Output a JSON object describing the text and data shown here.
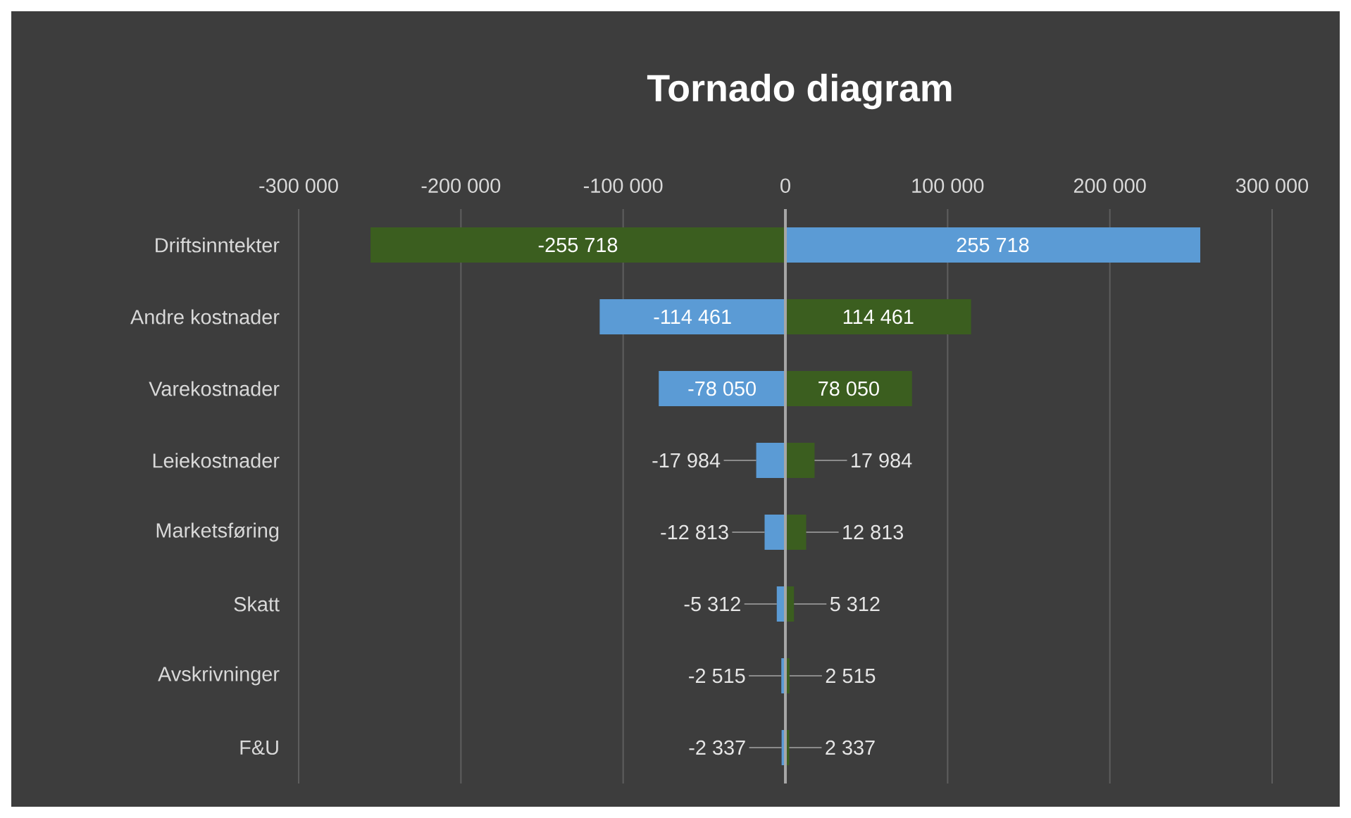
{
  "chart_data": {
    "type": "bar",
    "orientation": "horizontal",
    "stacked": true,
    "title": "Tornado diagram",
    "categories": [
      "Driftsinntekter",
      "Andre kostnader",
      "Varekostnader",
      "Leiekostnader",
      "Marketsføring",
      "Skatt",
      "Avskrivninger",
      "F&U"
    ],
    "series": [
      {
        "values": [
          -255718,
          -114461,
          -78050,
          -17984,
          -12813,
          -5312,
          -2515,
          -2337
        ],
        "colors": [
          "#3b5e1f",
          "#5b9bd5",
          "#5b9bd5",
          "#5b9bd5",
          "#5b9bd5",
          "#5b9bd5",
          "#5b9bd5",
          "#5b9bd5"
        ],
        "value_labels": [
          "-255 718",
          "-114 461",
          "-78 050",
          "-17 984",
          "-12 813",
          "-5 312",
          "-2 515",
          "-2 337"
        ]
      },
      {
        "values": [
          255718,
          114461,
          78050,
          17984,
          12813,
          5312,
          2515,
          2337
        ],
        "colors": [
          "#5b9bd5",
          "#3b5e1f",
          "#3b5e1f",
          "#3b5e1f",
          "#3b5e1f",
          "#3b5e1f",
          "#3b5e1f",
          "#3b5e1f"
        ],
        "value_labels": [
          "255 718",
          "114 461",
          "78 050",
          "17 984",
          "12 813",
          "5 312",
          "2 515",
          "2 337"
        ]
      }
    ],
    "xlim": [
      -300000,
      300000
    ],
    "xticks": [
      {
        "value": -300000,
        "label": "-300 000"
      },
      {
        "value": -200000,
        "label": "-200 000"
      },
      {
        "value": -100000,
        "label": "-100 000"
      },
      0,
      {
        "value": 100000,
        "label": "100 000"
      },
      {
        "value": 200000,
        "label": "200 000"
      },
      {
        "value": 300000,
        "label": "300 000"
      }
    ],
    "grid": "x"
  }
}
